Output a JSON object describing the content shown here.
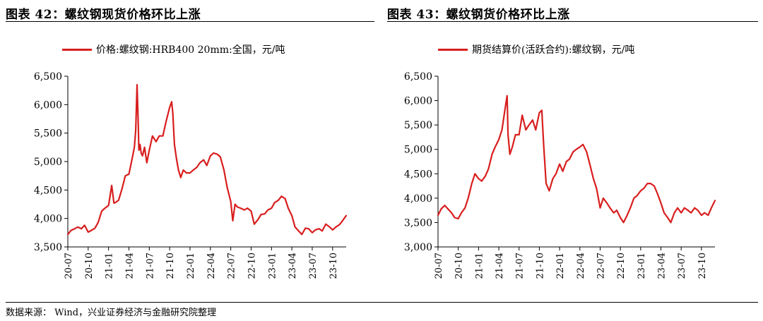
{
  "colors": {
    "series": "#d81e1e",
    "rule": "#000000"
  },
  "source": "数据来源： Wind，兴业证券经济与金融研究院整理",
  "chart_data": [
    {
      "type": "line",
      "title": "图表 42：螺纹钢现货价格环比上涨",
      "legend_position": "top",
      "grid": false,
      "ylim": [
        3500,
        6500
      ],
      "yticks": [
        3500,
        4000,
        4500,
        5000,
        5500,
        6000,
        6500
      ],
      "ytick_labels": [
        "3,500",
        "4,000",
        "4,500",
        "5,000",
        "5,500",
        "6,000",
        "6,500"
      ],
      "xlim": [
        "2020-07",
        "2023-12"
      ],
      "xticks": [
        "20-07",
        "20-10",
        "21-01",
        "21-04",
        "21-07",
        "21-10",
        "22-01",
        "22-04",
        "22-07",
        "22-10",
        "23-01",
        "23-04",
        "23-07",
        "23-10"
      ],
      "series": [
        {
          "name": "价格:螺纹钢:HRB400 20mm:全国，元/吨",
          "x": [
            "2020-07-01",
            "2020-07-15",
            "2020-08-01",
            "2020-08-15",
            "2020-09-01",
            "2020-09-15",
            "2020-10-01",
            "2020-10-15",
            "2020-11-01",
            "2020-11-15",
            "2020-12-01",
            "2020-12-15",
            "2021-01-01",
            "2021-01-15",
            "2021-01-25",
            "2021-02-01",
            "2021-02-15",
            "2021-03-01",
            "2021-03-15",
            "2021-04-01",
            "2021-04-15",
            "2021-04-25",
            "2021-05-01",
            "2021-05-07",
            "2021-05-12",
            "2021-05-15",
            "2021-05-20",
            "2021-05-25",
            "2021-06-01",
            "2021-06-10",
            "2021-06-20",
            "2021-07-01",
            "2021-07-15",
            "2021-08-01",
            "2021-08-15",
            "2021-09-01",
            "2021-09-15",
            "2021-10-01",
            "2021-10-10",
            "2021-10-15",
            "2021-10-22",
            "2021-11-01",
            "2021-11-10",
            "2021-11-20",
            "2021-12-01",
            "2021-12-15",
            "2022-01-01",
            "2022-01-15",
            "2022-02-01",
            "2022-02-15",
            "2022-03-01",
            "2022-03-15",
            "2022-04-01",
            "2022-04-15",
            "2022-05-01",
            "2022-05-15",
            "2022-06-01",
            "2022-06-15",
            "2022-07-01",
            "2022-07-10",
            "2022-07-20",
            "2022-08-01",
            "2022-08-15",
            "2022-09-01",
            "2022-09-15",
            "2022-10-01",
            "2022-10-15",
            "2022-11-01",
            "2022-11-15",
            "2022-12-01",
            "2022-12-15",
            "2023-01-01",
            "2023-01-15",
            "2023-02-01",
            "2023-02-15",
            "2023-03-01",
            "2023-03-15",
            "2023-04-01",
            "2023-04-15",
            "2023-05-01",
            "2023-05-15",
            "2023-06-01",
            "2023-06-15",
            "2023-07-01",
            "2023-07-15",
            "2023-08-01",
            "2023-08-15",
            "2023-09-01",
            "2023-09-15",
            "2023-10-01",
            "2023-10-15",
            "2023-11-01",
            "2023-11-15",
            "2023-12-01"
          ],
          "values": [
            3720,
            3790,
            3820,
            3850,
            3820,
            3880,
            3760,
            3790,
            3830,
            3930,
            4130,
            4180,
            4230,
            4580,
            4270,
            4280,
            4320,
            4530,
            4750,
            4780,
            5050,
            5250,
            5550,
            6350,
            5700,
            5200,
            5300,
            5150,
            5100,
            5250,
            4980,
            5200,
            5450,
            5350,
            5450,
            5450,
            5700,
            5950,
            6050,
            5850,
            5300,
            5050,
            4850,
            4720,
            4850,
            4800,
            4800,
            4850,
            4900,
            4980,
            5030,
            4930,
            5100,
            5150,
            5130,
            5080,
            4850,
            4550,
            4300,
            3960,
            4250,
            4200,
            4180,
            4150,
            4180,
            4130,
            3900,
            3980,
            4070,
            4080,
            4150,
            4180,
            4280,
            4320,
            4390,
            4350,
            4180,
            4050,
            3850,
            3780,
            3720,
            3830,
            3820,
            3750,
            3800,
            3820,
            3780,
            3900,
            3860,
            3800,
            3850,
            3890,
            3960,
            4050
          ]
        }
      ]
    },
    {
      "type": "line",
      "title": "图表 43：螺纹钢货价格环比上涨",
      "legend_position": "top",
      "grid": false,
      "ylim": [
        3000,
        6500
      ],
      "yticks": [
        3000,
        3500,
        4000,
        4500,
        5000,
        5500,
        6000,
        6500
      ],
      "ytick_labels": [
        "3,000",
        "3,500",
        "4,000",
        "4,500",
        "5,000",
        "5,500",
        "6,000",
        "6,500"
      ],
      "xlim": [
        "2020-07",
        "2023-12"
      ],
      "xticks": [
        "20-07",
        "20-10",
        "21-01",
        "21-04",
        "21-07",
        "21-10",
        "22-01",
        "22-04",
        "22-07",
        "22-10",
        "23-01",
        "23-04",
        "23-07",
        "23-10"
      ],
      "series": [
        {
          "name": "期货结算价(活跃合约):螺纹钢，元/吨",
          "x": [
            "2020-07-01",
            "2020-07-15",
            "2020-08-01",
            "2020-08-15",
            "2020-09-01",
            "2020-09-15",
            "2020-10-01",
            "2020-10-15",
            "2020-11-01",
            "2020-11-15",
            "2020-12-01",
            "2020-12-15",
            "2021-01-01",
            "2021-01-15",
            "2021-02-01",
            "2021-02-15",
            "2021-03-01",
            "2021-03-15",
            "2021-04-01",
            "2021-04-15",
            "2021-05-01",
            "2021-05-08",
            "2021-05-12",
            "2021-05-20",
            "2021-06-01",
            "2021-06-15",
            "2021-07-01",
            "2021-07-15",
            "2021-08-01",
            "2021-08-15",
            "2021-09-01",
            "2021-09-15",
            "2021-10-01",
            "2021-10-12",
            "2021-10-20",
            "2021-11-01",
            "2021-11-15",
            "2021-12-01",
            "2021-12-15",
            "2022-01-01",
            "2022-01-15",
            "2022-02-01",
            "2022-02-15",
            "2022-03-01",
            "2022-03-15",
            "2022-04-01",
            "2022-04-15",
            "2022-05-01",
            "2022-05-15",
            "2022-06-01",
            "2022-06-15",
            "2022-07-01",
            "2022-07-15",
            "2022-08-01",
            "2022-08-15",
            "2022-09-01",
            "2022-09-15",
            "2022-10-01",
            "2022-10-15",
            "2022-11-01",
            "2022-11-15",
            "2022-12-01",
            "2022-12-15",
            "2023-01-01",
            "2023-01-15",
            "2023-02-01",
            "2023-02-15",
            "2023-03-01",
            "2023-03-15",
            "2023-04-01",
            "2023-04-15",
            "2023-05-01",
            "2023-05-15",
            "2023-06-01",
            "2023-06-15",
            "2023-07-01",
            "2023-07-15",
            "2023-08-01",
            "2023-08-15",
            "2023-09-01",
            "2023-09-15",
            "2023-10-01",
            "2023-10-15",
            "2023-11-01",
            "2023-11-15",
            "2023-12-01"
          ],
          "values": [
            3650,
            3780,
            3850,
            3780,
            3700,
            3600,
            3580,
            3700,
            3800,
            4000,
            4300,
            4500,
            4400,
            4350,
            4450,
            4600,
            4900,
            5050,
            5200,
            5400,
            5900,
            6100,
            5300,
            4900,
            5050,
            5300,
            5300,
            5700,
            5400,
            5500,
            5600,
            5400,
            5750,
            5800,
            5100,
            4300,
            4150,
            4400,
            4500,
            4700,
            4550,
            4750,
            4800,
            4950,
            5000,
            5050,
            5100,
            4950,
            4700,
            4400,
            4200,
            3800,
            4000,
            3900,
            3800,
            3700,
            3750,
            3600,
            3500,
            3650,
            3800,
            4000,
            4050,
            4150,
            4200,
            4300,
            4300,
            4250,
            4100,
            3900,
            3700,
            3600,
            3500,
            3700,
            3800,
            3700,
            3800,
            3750,
            3700,
            3800,
            3750,
            3650,
            3700,
            3650,
            3800,
            3950
          ]
        }
      ]
    }
  ]
}
